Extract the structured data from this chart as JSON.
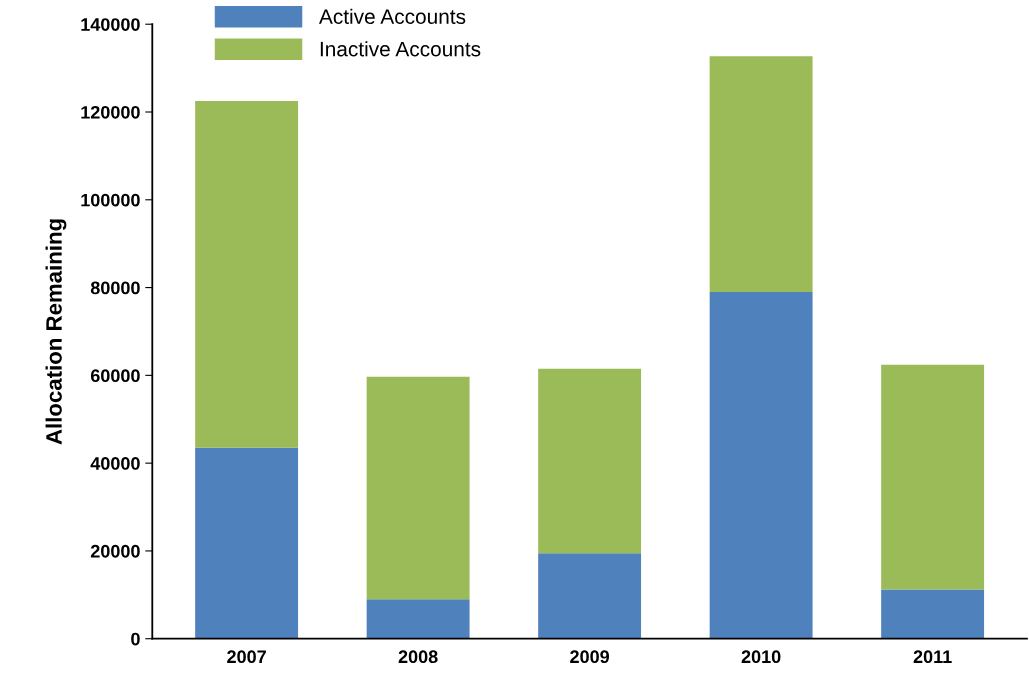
{
  "chart_data": {
    "type": "bar",
    "stacked": true,
    "ylabel": "Allocation Remaining",
    "categories": [
      "2007",
      "2008",
      "2009",
      "2010",
      "2011"
    ],
    "series": [
      {
        "name": "Active Accounts",
        "color": "#4f81bd",
        "values": [
          43500,
          9000,
          19500,
          79000,
          11200
        ]
      },
      {
        "name": "Inactive Accounts",
        "color": "#9bbb59",
        "values": [
          79000,
          50700,
          42000,
          53700,
          51200
        ]
      }
    ],
    "ylim": [
      0,
      140000
    ],
    "yticks": [
      0,
      20000,
      40000,
      60000,
      80000,
      100000,
      120000,
      140000
    ],
    "grid": false,
    "legend": "top left"
  }
}
